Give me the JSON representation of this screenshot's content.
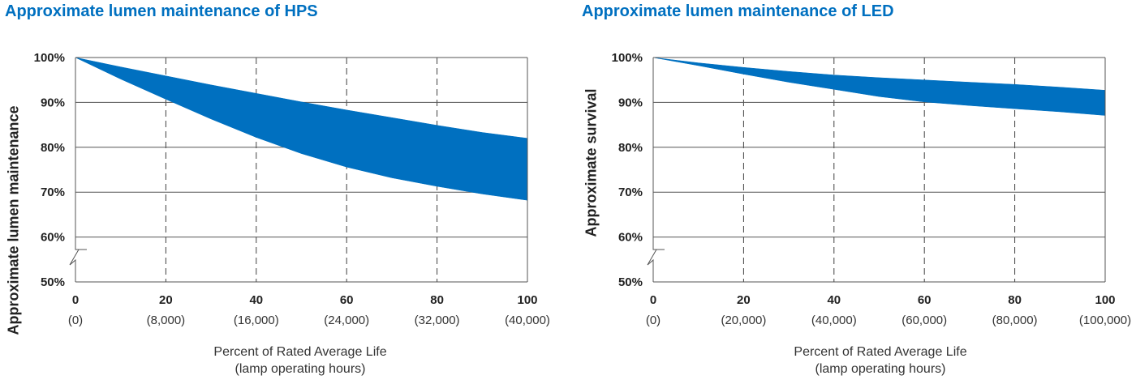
{
  "chart_data": [
    {
      "id": "hps",
      "type": "area",
      "title": "Approximate lumen maintenance of HPS",
      "ylabel": "Approximate lumen maintenance",
      "xlabel": [
        "Percent of Rated Average Life",
        "(lamp operating hours)"
      ],
      "xlim": [
        0,
        100
      ],
      "ylim": [
        50,
        100
      ],
      "y_axis_break": true,
      "x_ticks": [
        0,
        20,
        40,
        60,
        80,
        100
      ],
      "x_tick_sublabels": [
        "(0)",
        "(8,000)",
        "(16,000)",
        "(24,000)",
        "(32,000)",
        "(40,000)"
      ],
      "y_ticks": [
        {
          "value": 100,
          "label": "100%"
        },
        {
          "value": 90,
          "label": "90%"
        },
        {
          "value": 80,
          "label": "80%"
        },
        {
          "value": 70,
          "label": "70%"
        },
        {
          "value": 60,
          "label": "60%"
        },
        {
          "value": 50,
          "label": "50%"
        }
      ],
      "band_color": "#0070c0",
      "band": {
        "x": [
          0,
          10,
          20,
          30,
          40,
          50,
          60,
          70,
          80,
          90,
          100
        ],
        "upper": [
          100,
          97.9,
          95.9,
          93.9,
          92.0,
          90.1,
          88.3,
          86.6,
          84.9,
          83.3,
          82.0
        ],
        "lower": [
          100,
          95.2,
          90.7,
          86.3,
          82.2,
          78.6,
          75.6,
          73.2,
          71.3,
          69.6,
          68.2
        ]
      }
    },
    {
      "id": "led",
      "type": "area",
      "title": "Approximate lumen maintenance of LED",
      "ylabel": "Approximate survival",
      "xlabel": [
        "Percent of Rated Average Life",
        "(lamp operating hours)"
      ],
      "xlim": [
        0,
        100
      ],
      "ylim": [
        50,
        100
      ],
      "y_axis_break": true,
      "x_ticks": [
        0,
        20,
        40,
        60,
        80,
        100
      ],
      "x_tick_sublabels": [
        "(0)",
        "(20,000)",
        "(40,000)",
        "(60,000)",
        "(80,000)",
        "(100,000)"
      ],
      "y_ticks": [
        {
          "value": 100,
          "label": "100%"
        },
        {
          "value": 90,
          "label": "90%"
        },
        {
          "value": 80,
          "label": "80%"
        },
        {
          "value": 70,
          "label": "70%"
        },
        {
          "value": 60,
          "label": "60%"
        },
        {
          "value": 50,
          "label": "50%"
        }
      ],
      "band_color": "#0070c0",
      "band": {
        "x": [
          0,
          10,
          20,
          30,
          40,
          50,
          60,
          70,
          80,
          90,
          100
        ],
        "upper": [
          100,
          98.8,
          97.8,
          96.9,
          96.1,
          95.5,
          95.0,
          94.5,
          94.0,
          93.4,
          92.7
        ],
        "lower": [
          100,
          98.2,
          96.3,
          94.5,
          92.9,
          91.3,
          90.1,
          89.3,
          88.6,
          87.9,
          87.1
        ]
      }
    }
  ]
}
